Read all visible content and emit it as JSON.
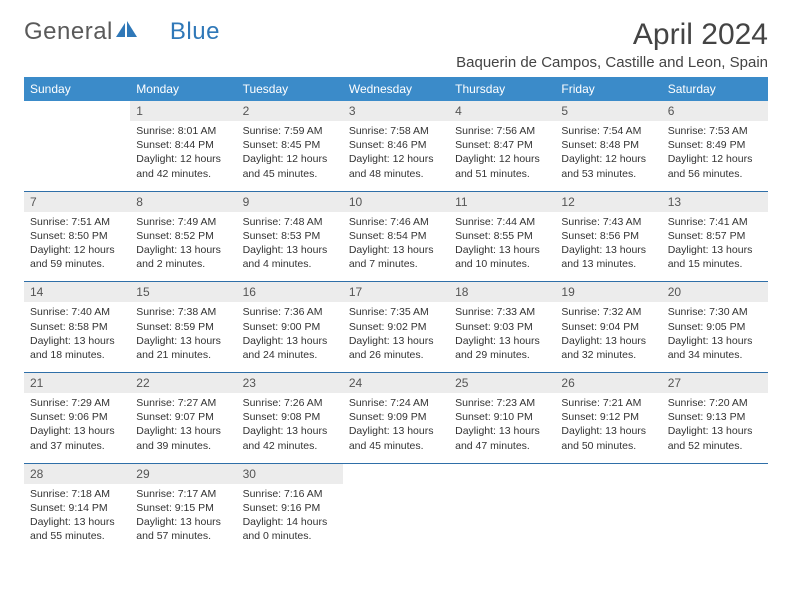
{
  "brand": {
    "part1": "General",
    "part2": "Blue"
  },
  "title": "April 2024",
  "location": "Baquerin de Campos, Castille and Leon, Spain",
  "colors": {
    "header_bg": "#3b8bc9",
    "header_text": "#ffffff",
    "daynum_bg": "#ececec",
    "row_border": "#2f6fa8",
    "brand_gray": "#5a5a5a",
    "brand_blue": "#2f78b8"
  },
  "day_headers": [
    "Sunday",
    "Monday",
    "Tuesday",
    "Wednesday",
    "Thursday",
    "Friday",
    "Saturday"
  ],
  "weeks": [
    {
      "nums": [
        "",
        "1",
        "2",
        "3",
        "4",
        "5",
        "6"
      ],
      "cells": [
        "",
        "Sunrise: 8:01 AM\nSunset: 8:44 PM\nDaylight: 12 hours and 42 minutes.",
        "Sunrise: 7:59 AM\nSunset: 8:45 PM\nDaylight: 12 hours and 45 minutes.",
        "Sunrise: 7:58 AM\nSunset: 8:46 PM\nDaylight: 12 hours and 48 minutes.",
        "Sunrise: 7:56 AM\nSunset: 8:47 PM\nDaylight: 12 hours and 51 minutes.",
        "Sunrise: 7:54 AM\nSunset: 8:48 PM\nDaylight: 12 hours and 53 minutes.",
        "Sunrise: 7:53 AM\nSunset: 8:49 PM\nDaylight: 12 hours and 56 minutes."
      ]
    },
    {
      "nums": [
        "7",
        "8",
        "9",
        "10",
        "11",
        "12",
        "13"
      ],
      "cells": [
        "Sunrise: 7:51 AM\nSunset: 8:50 PM\nDaylight: 12 hours and 59 minutes.",
        "Sunrise: 7:49 AM\nSunset: 8:52 PM\nDaylight: 13 hours and 2 minutes.",
        "Sunrise: 7:48 AM\nSunset: 8:53 PM\nDaylight: 13 hours and 4 minutes.",
        "Sunrise: 7:46 AM\nSunset: 8:54 PM\nDaylight: 13 hours and 7 minutes.",
        "Sunrise: 7:44 AM\nSunset: 8:55 PM\nDaylight: 13 hours and 10 minutes.",
        "Sunrise: 7:43 AM\nSunset: 8:56 PM\nDaylight: 13 hours and 13 minutes.",
        "Sunrise: 7:41 AM\nSunset: 8:57 PM\nDaylight: 13 hours and 15 minutes."
      ]
    },
    {
      "nums": [
        "14",
        "15",
        "16",
        "17",
        "18",
        "19",
        "20"
      ],
      "cells": [
        "Sunrise: 7:40 AM\nSunset: 8:58 PM\nDaylight: 13 hours and 18 minutes.",
        "Sunrise: 7:38 AM\nSunset: 8:59 PM\nDaylight: 13 hours and 21 minutes.",
        "Sunrise: 7:36 AM\nSunset: 9:00 PM\nDaylight: 13 hours and 24 minutes.",
        "Sunrise: 7:35 AM\nSunset: 9:02 PM\nDaylight: 13 hours and 26 minutes.",
        "Sunrise: 7:33 AM\nSunset: 9:03 PM\nDaylight: 13 hours and 29 minutes.",
        "Sunrise: 7:32 AM\nSunset: 9:04 PM\nDaylight: 13 hours and 32 minutes.",
        "Sunrise: 7:30 AM\nSunset: 9:05 PM\nDaylight: 13 hours and 34 minutes."
      ]
    },
    {
      "nums": [
        "21",
        "22",
        "23",
        "24",
        "25",
        "26",
        "27"
      ],
      "cells": [
        "Sunrise: 7:29 AM\nSunset: 9:06 PM\nDaylight: 13 hours and 37 minutes.",
        "Sunrise: 7:27 AM\nSunset: 9:07 PM\nDaylight: 13 hours and 39 minutes.",
        "Sunrise: 7:26 AM\nSunset: 9:08 PM\nDaylight: 13 hours and 42 minutes.",
        "Sunrise: 7:24 AM\nSunset: 9:09 PM\nDaylight: 13 hours and 45 minutes.",
        "Sunrise: 7:23 AM\nSunset: 9:10 PM\nDaylight: 13 hours and 47 minutes.",
        "Sunrise: 7:21 AM\nSunset: 9:12 PM\nDaylight: 13 hours and 50 minutes.",
        "Sunrise: 7:20 AM\nSunset: 9:13 PM\nDaylight: 13 hours and 52 minutes."
      ]
    },
    {
      "nums": [
        "28",
        "29",
        "30",
        "",
        "",
        "",
        ""
      ],
      "cells": [
        "Sunrise: 7:18 AM\nSunset: 9:14 PM\nDaylight: 13 hours and 55 minutes.",
        "Sunrise: 7:17 AM\nSunset: 9:15 PM\nDaylight: 13 hours and 57 minutes.",
        "Sunrise: 7:16 AM\nSunset: 9:16 PM\nDaylight: 14 hours and 0 minutes.",
        "",
        "",
        "",
        ""
      ]
    }
  ]
}
